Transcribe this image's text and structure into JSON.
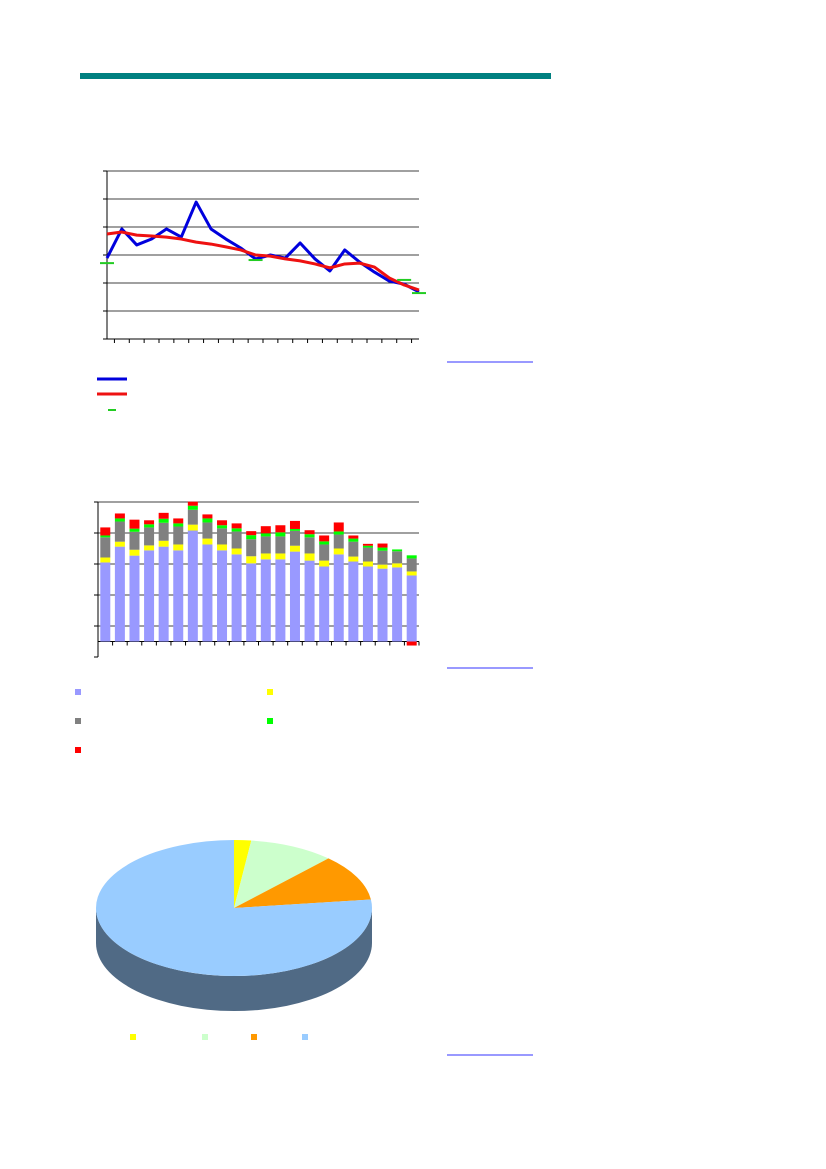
{
  "charts": [
    {
      "type": "line",
      "categories": [
        null,
        null,
        null,
        null,
        null,
        null,
        null,
        null,
        null,
        null,
        null,
        null,
        null,
        null,
        null,
        null,
        null,
        null,
        null,
        null,
        null,
        null
      ],
      "ylim": [
        0,
        6
      ],
      "yticks": [
        0,
        1,
        2,
        3,
        4,
        5,
        6
      ],
      "grid": true,
      "series": [
        {
          "color": "#0000dd",
          "values": [
            2.89,
            3.93,
            3.36,
            3.57,
            3.93,
            3.64,
            4.89,
            3.93,
            3.57,
            3.25,
            2.86,
            3.0,
            2.89,
            3.43,
            2.86,
            2.43,
            3.18,
            2.75,
            2.39,
            2.07,
            1.96,
            1.68
          ]
        },
        {
          "color": "#ee1111",
          "values": [
            3.75,
            3.82,
            3.71,
            3.68,
            3.64,
            3.57,
            3.46,
            3.39,
            3.29,
            3.18,
            3.0,
            2.96,
            2.86,
            2.79,
            2.68,
            2.54,
            2.68,
            2.71,
            2.57,
            2.18,
            1.93,
            1.75
          ]
        },
        {
          "color": "#22cc22",
          "marker": "dash",
          "values": [
            2.71,
            null,
            null,
            null,
            null,
            null,
            null,
            null,
            null,
            null,
            2.82,
            null,
            null,
            null,
            null,
            null,
            null,
            null,
            null,
            null,
            2.11,
            1.64
          ]
        }
      ]
    },
    {
      "type": "bar",
      "stacked": true,
      "categories": [
        null,
        null,
        null,
        null,
        null,
        null,
        null,
        null,
        null,
        null,
        null,
        null,
        null,
        null,
        null,
        null,
        null,
        null,
        null,
        null,
        null,
        null
      ],
      "ylim": [
        -0.5,
        4.5
      ],
      "yticks": [
        -0.5,
        0.5,
        1.5,
        2.5,
        3.5,
        4.5
      ],
      "grid": true,
      "series": [
        {
          "color": "#9999ff",
          "values": [
            2.55,
            3.06,
            2.77,
            2.94,
            3.06,
            2.94,
            3.58,
            3.13,
            2.94,
            2.81,
            2.52,
            2.65,
            2.65,
            2.9,
            2.61,
            2.42,
            2.81,
            2.58,
            2.42,
            2.35,
            2.39,
            2.13
          ]
        },
        {
          "color": "#ffff00",
          "values": [
            0.16,
            0.16,
            0.19,
            0.16,
            0.19,
            0.19,
            0.19,
            0.19,
            0.19,
            0.19,
            0.23,
            0.19,
            0.19,
            0.19,
            0.23,
            0.19,
            0.19,
            0.16,
            0.16,
            0.13,
            0.13,
            0.13
          ]
        },
        {
          "color": "#808080",
          "values": [
            0.65,
            0.65,
            0.58,
            0.58,
            0.58,
            0.58,
            0.48,
            0.52,
            0.52,
            0.55,
            0.55,
            0.55,
            0.55,
            0.48,
            0.52,
            0.52,
            0.45,
            0.48,
            0.45,
            0.45,
            0.39,
            0.42
          ]
        },
        {
          "color": "#00ff00",
          "values": [
            0.06,
            0.1,
            0.1,
            0.1,
            0.13,
            0.1,
            0.13,
            0.13,
            0.1,
            0.1,
            0.13,
            0.1,
            0.13,
            0.06,
            0.1,
            0.1,
            0.1,
            0.1,
            0.06,
            0.1,
            0.06,
            0.1
          ]
        },
        {
          "color": "#ff0000",
          "values": [
            0.26,
            0.16,
            0.29,
            0.13,
            0.19,
            0.16,
            0.13,
            0.13,
            0.16,
            0.16,
            0.13,
            0.23,
            0.23,
            0.26,
            0.13,
            0.19,
            0.29,
            0.1,
            0.06,
            0.13,
            0,
            -0.13
          ]
        }
      ]
    },
    {
      "type": "pie",
      "three_d": true,
      "values": [
        2,
        10,
        11,
        77
      ],
      "colors": [
        "#ffff00",
        "#ccffcc",
        "#ff9900",
        "#99ccff"
      ]
    }
  ]
}
